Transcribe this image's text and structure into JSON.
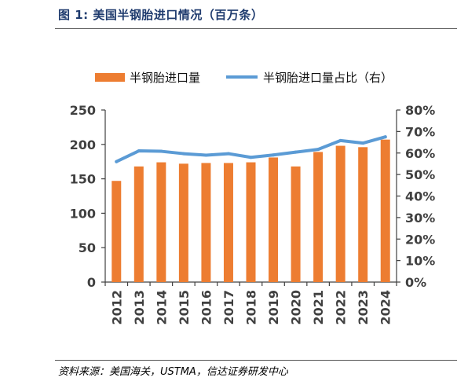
{
  "header": {
    "title": "图 1:  美国半钢胎进口情况（百万条）"
  },
  "footer": {
    "source": "资料来源：美国海关，USTMA，信达证券研发中心"
  },
  "colors": {
    "bar": "#ed7d31",
    "line": "#5b9bd5",
    "axis": "#404040",
    "title": "#1f3b6e"
  },
  "chart_data": {
    "type": "bar",
    "categories": [
      "2012",
      "2013",
      "2014",
      "2015",
      "2016",
      "2017",
      "2018",
      "2019",
      "2020",
      "2021",
      "2022",
      "2023",
      "2024"
    ],
    "series": [
      {
        "name": "半钢胎进口量",
        "type": "bar",
        "axis": "left",
        "values": [
          147,
          168,
          174,
          172,
          173,
          173,
          174,
          181,
          168,
          189,
          198,
          196,
          207
        ]
      },
      {
        "name": "半钢胎进口量占比（右）",
        "type": "line",
        "axis": "right",
        "values": [
          0.56,
          0.61,
          0.608,
          0.597,
          0.59,
          0.597,
          0.58,
          0.591,
          0.604,
          0.617,
          0.658,
          0.646,
          0.675
        ]
      }
    ],
    "y_left": {
      "min": 0,
      "max": 250,
      "step": 50,
      "ticks": [
        "0",
        "50",
        "100",
        "150",
        "200",
        "250"
      ]
    },
    "y_right": {
      "min": 0,
      "max": 0.8,
      "step": 0.1,
      "ticks": [
        "0%",
        "10%",
        "20%",
        "30%",
        "40%",
        "50%",
        "60%",
        "70%",
        "80%"
      ]
    },
    "grid": false,
    "legend": "top"
  }
}
